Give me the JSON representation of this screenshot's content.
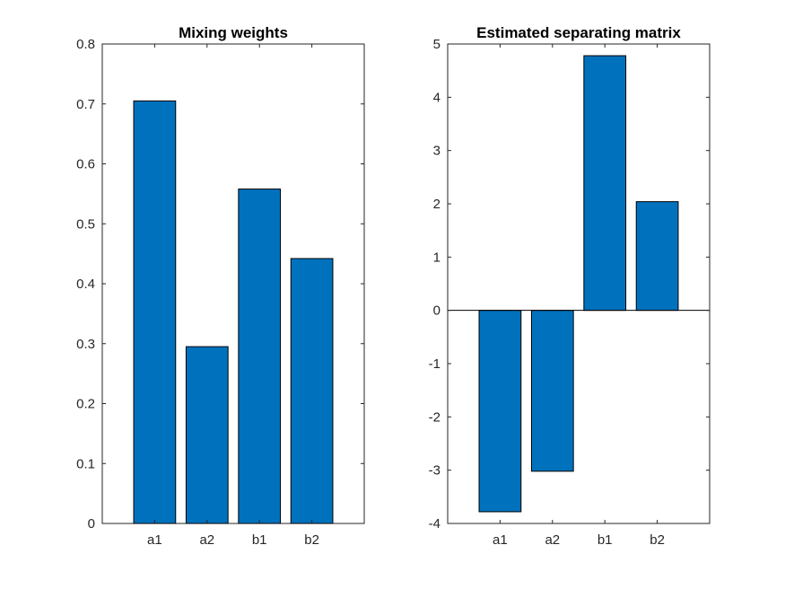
{
  "chart_data": [
    {
      "type": "bar",
      "title": "Mixing weights",
      "categories": [
        "a1",
        "a2",
        "b1",
        "b2"
      ],
      "values": [
        0.705,
        0.295,
        0.558,
        0.442
      ],
      "ylim": [
        0,
        0.8
      ],
      "yticks": [
        0,
        0.1,
        0.2,
        0.3,
        0.4,
        0.5,
        0.6,
        0.7,
        0.8
      ],
      "ytick_labels": [
        "0",
        "0.1",
        "0.2",
        "0.3",
        "0.4",
        "0.5",
        "0.6",
        "0.7",
        "0.8"
      ],
      "bar_color": "#0072BD",
      "grid": false,
      "xlabel": "",
      "ylabel": ""
    },
    {
      "type": "bar",
      "title": "Estimated separating matrix",
      "categories": [
        "a1",
        "a2",
        "b1",
        "b2"
      ],
      "values": [
        -3.78,
        -3.02,
        4.78,
        2.04
      ],
      "ylim": [
        -4,
        5
      ],
      "yticks": [
        -4,
        -3,
        -2,
        -1,
        0,
        1,
        2,
        3,
        4,
        5
      ],
      "ytick_labels": [
        "-4",
        "-3",
        "-2",
        "-1",
        "0",
        "1",
        "2",
        "3",
        "4",
        "5"
      ],
      "bar_color": "#0072BD",
      "grid": false,
      "xlabel": "",
      "ylabel": ""
    }
  ]
}
